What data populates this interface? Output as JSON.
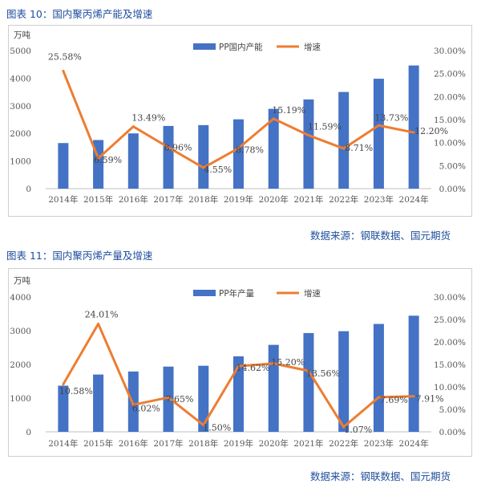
{
  "colors": {
    "bar": "#4472c4",
    "line": "#ed7d31",
    "title": "#1f4e9c"
  },
  "chart_data": [
    {
      "type": "bar",
      "title": "图表 10：国内聚丙烯产能及增速",
      "source": "数据来源：钢联数据、国元期货",
      "unit_left": "万吨",
      "categories": [
        "2014年",
        "2015年",
        "2016年",
        "2017年",
        "2018年",
        "2019年",
        "2020年",
        "2021年",
        "2022年",
        "2023年",
        "2024年"
      ],
      "series": [
        {
          "name": "PP国内产能",
          "type": "bar",
          "axis": "left",
          "values": [
            1650,
            1760,
            2000,
            2270,
            2300,
            2510,
            2890,
            3230,
            3500,
            3980,
            4460
          ]
        },
        {
          "name": "增速",
          "type": "line",
          "axis": "right",
          "values": [
            25.58,
            6.59,
            13.49,
            8.96,
            4.55,
            8.78,
            15.19,
            11.59,
            8.71,
            13.73,
            12.2
          ],
          "labels": [
            "25.58%",
            "6.59%",
            "13.49%",
            "8.96%",
            "4.55%",
            "8.78%",
            "15.19%",
            "11.59%",
            "8.71%",
            "13.73%",
            "12.20%"
          ]
        }
      ],
      "y_left": {
        "min": 0,
        "max": 5000,
        "ticks": [
          "0",
          "1000",
          "2000",
          "3000",
          "4000",
          "5000"
        ]
      },
      "y_right": {
        "min": 0,
        "max": 30,
        "ticks": [
          "0.00%",
          "5.00%",
          "10.00%",
          "15.00%",
          "20.00%",
          "25.00%",
          "30.00%"
        ]
      },
      "grid": false,
      "legend": "top"
    },
    {
      "type": "bar",
      "title": "图表 11：国内聚丙烯产量及增速",
      "source": "数据来源：钢联数据、国元期货",
      "unit_left": "万吨",
      "categories": [
        "2014年",
        "2015年",
        "2016年",
        "2017年",
        "2018年",
        "2019年",
        "2020年",
        "2021年",
        "2022年",
        "2023年",
        "2024年"
      ],
      "series": [
        {
          "name": "PP年产量",
          "type": "bar",
          "axis": "left",
          "values": [
            1370,
            1700,
            1790,
            1935,
            1960,
            2240,
            2580,
            2930,
            2985,
            3200,
            3445
          ]
        },
        {
          "name": "增速",
          "type": "line",
          "axis": "right",
          "values": [
            10.58,
            24.01,
            6.02,
            7.65,
            1.5,
            14.62,
            15.2,
            13.56,
            1.07,
            7.69,
            7.91
          ],
          "labels": [
            "10.58%",
            "24.01%",
            "6.02%",
            "7.65%",
            "1.50%",
            "14.62%",
            "15.20%",
            "13.56%",
            "1.07%",
            "7.69%",
            "7.91%"
          ]
        }
      ],
      "y_left": {
        "min": 0,
        "max": 4000,
        "ticks": [
          "0",
          "1000",
          "2000",
          "3000",
          "4000"
        ]
      },
      "y_right": {
        "min": 0,
        "max": 30,
        "ticks": [
          "0.00%",
          "5.00%",
          "10.00%",
          "15.00%",
          "20.00%",
          "25.00%",
          "30.00%"
        ]
      },
      "grid": false,
      "legend": "top"
    }
  ]
}
